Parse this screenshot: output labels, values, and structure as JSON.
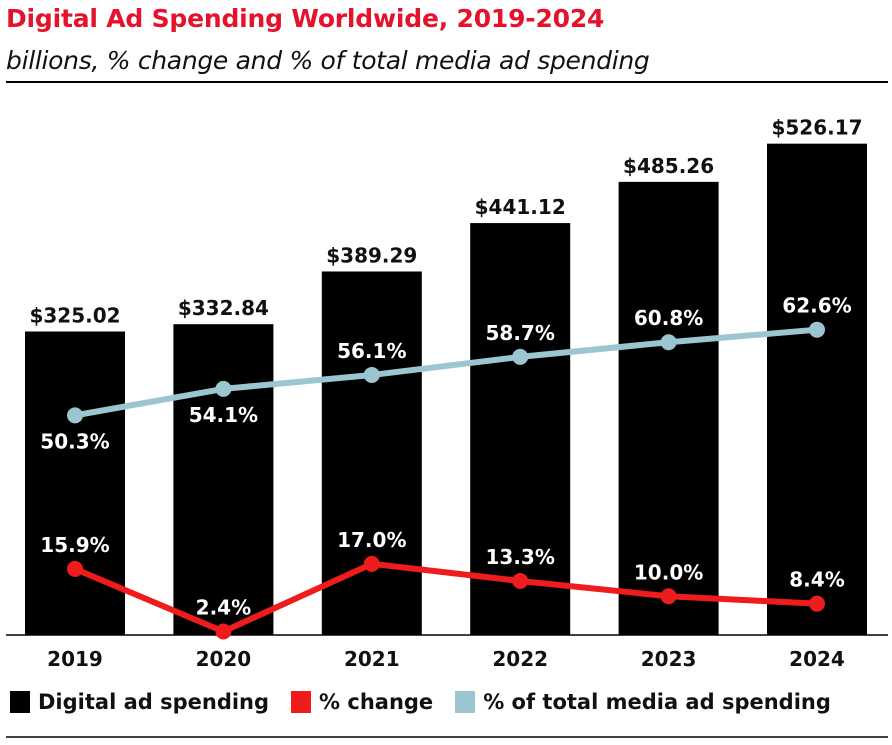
{
  "chart_data": {
    "type": "bar",
    "title": "Digital Ad Spending Worldwide, 2019-2024",
    "subtitle": "billions, % change and % of total media ad spending",
    "categories": [
      "2019",
      "2020",
      "2021",
      "2022",
      "2023",
      "2024"
    ],
    "series": [
      {
        "name": "Digital ad spending",
        "type": "bar",
        "values": [
          325.02,
          332.84,
          389.29,
          441.12,
          485.26,
          526.17
        ],
        "labels": [
          "$325.02",
          "$332.84",
          "$389.29",
          "$441.12",
          "$485.26",
          "$526.17"
        ],
        "color": "#000000"
      },
      {
        "name": "% change",
        "type": "line",
        "values": [
          15.9,
          2.4,
          17.0,
          13.3,
          10.0,
          8.4
        ],
        "labels": [
          "15.9%",
          "2.4%",
          "17.0%",
          "13.3%",
          "10.0%",
          "8.4%"
        ],
        "color": "#ee1c1c"
      },
      {
        "name": "% of total media ad spending",
        "type": "line",
        "values": [
          50.3,
          54.1,
          56.1,
          58.7,
          60.8,
          62.6
        ],
        "labels": [
          "50.3%",
          "54.1%",
          "56.1%",
          "58.7%",
          "60.8%",
          "62.6%"
        ],
        "color": "#9cc5d2"
      }
    ],
    "grid": false,
    "legend": "bottom"
  }
}
